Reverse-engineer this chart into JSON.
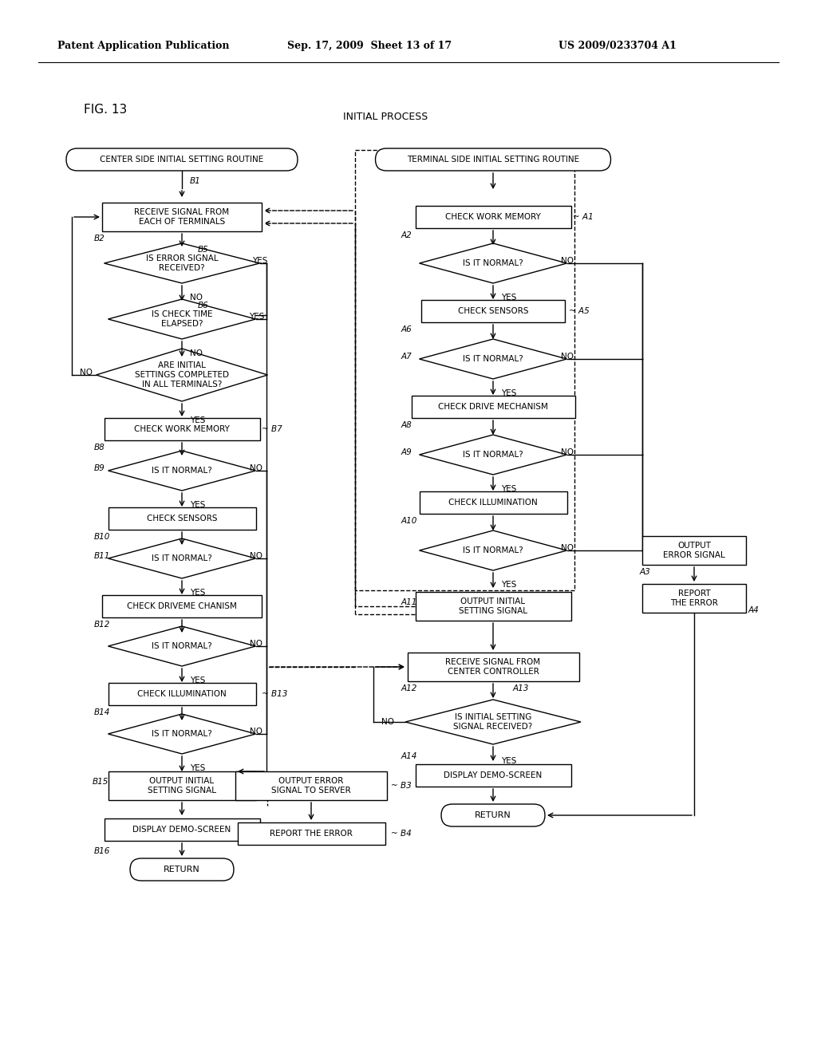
{
  "header_left": "Patent Application Publication",
  "header_mid": "Sep. 17, 2009  Sheet 13 of 17",
  "header_right": "US 2009/0233704 A1",
  "fig_label": "FIG. 13",
  "subtitle": "INITIAL PROCESS",
  "bg_color": "#ffffff"
}
